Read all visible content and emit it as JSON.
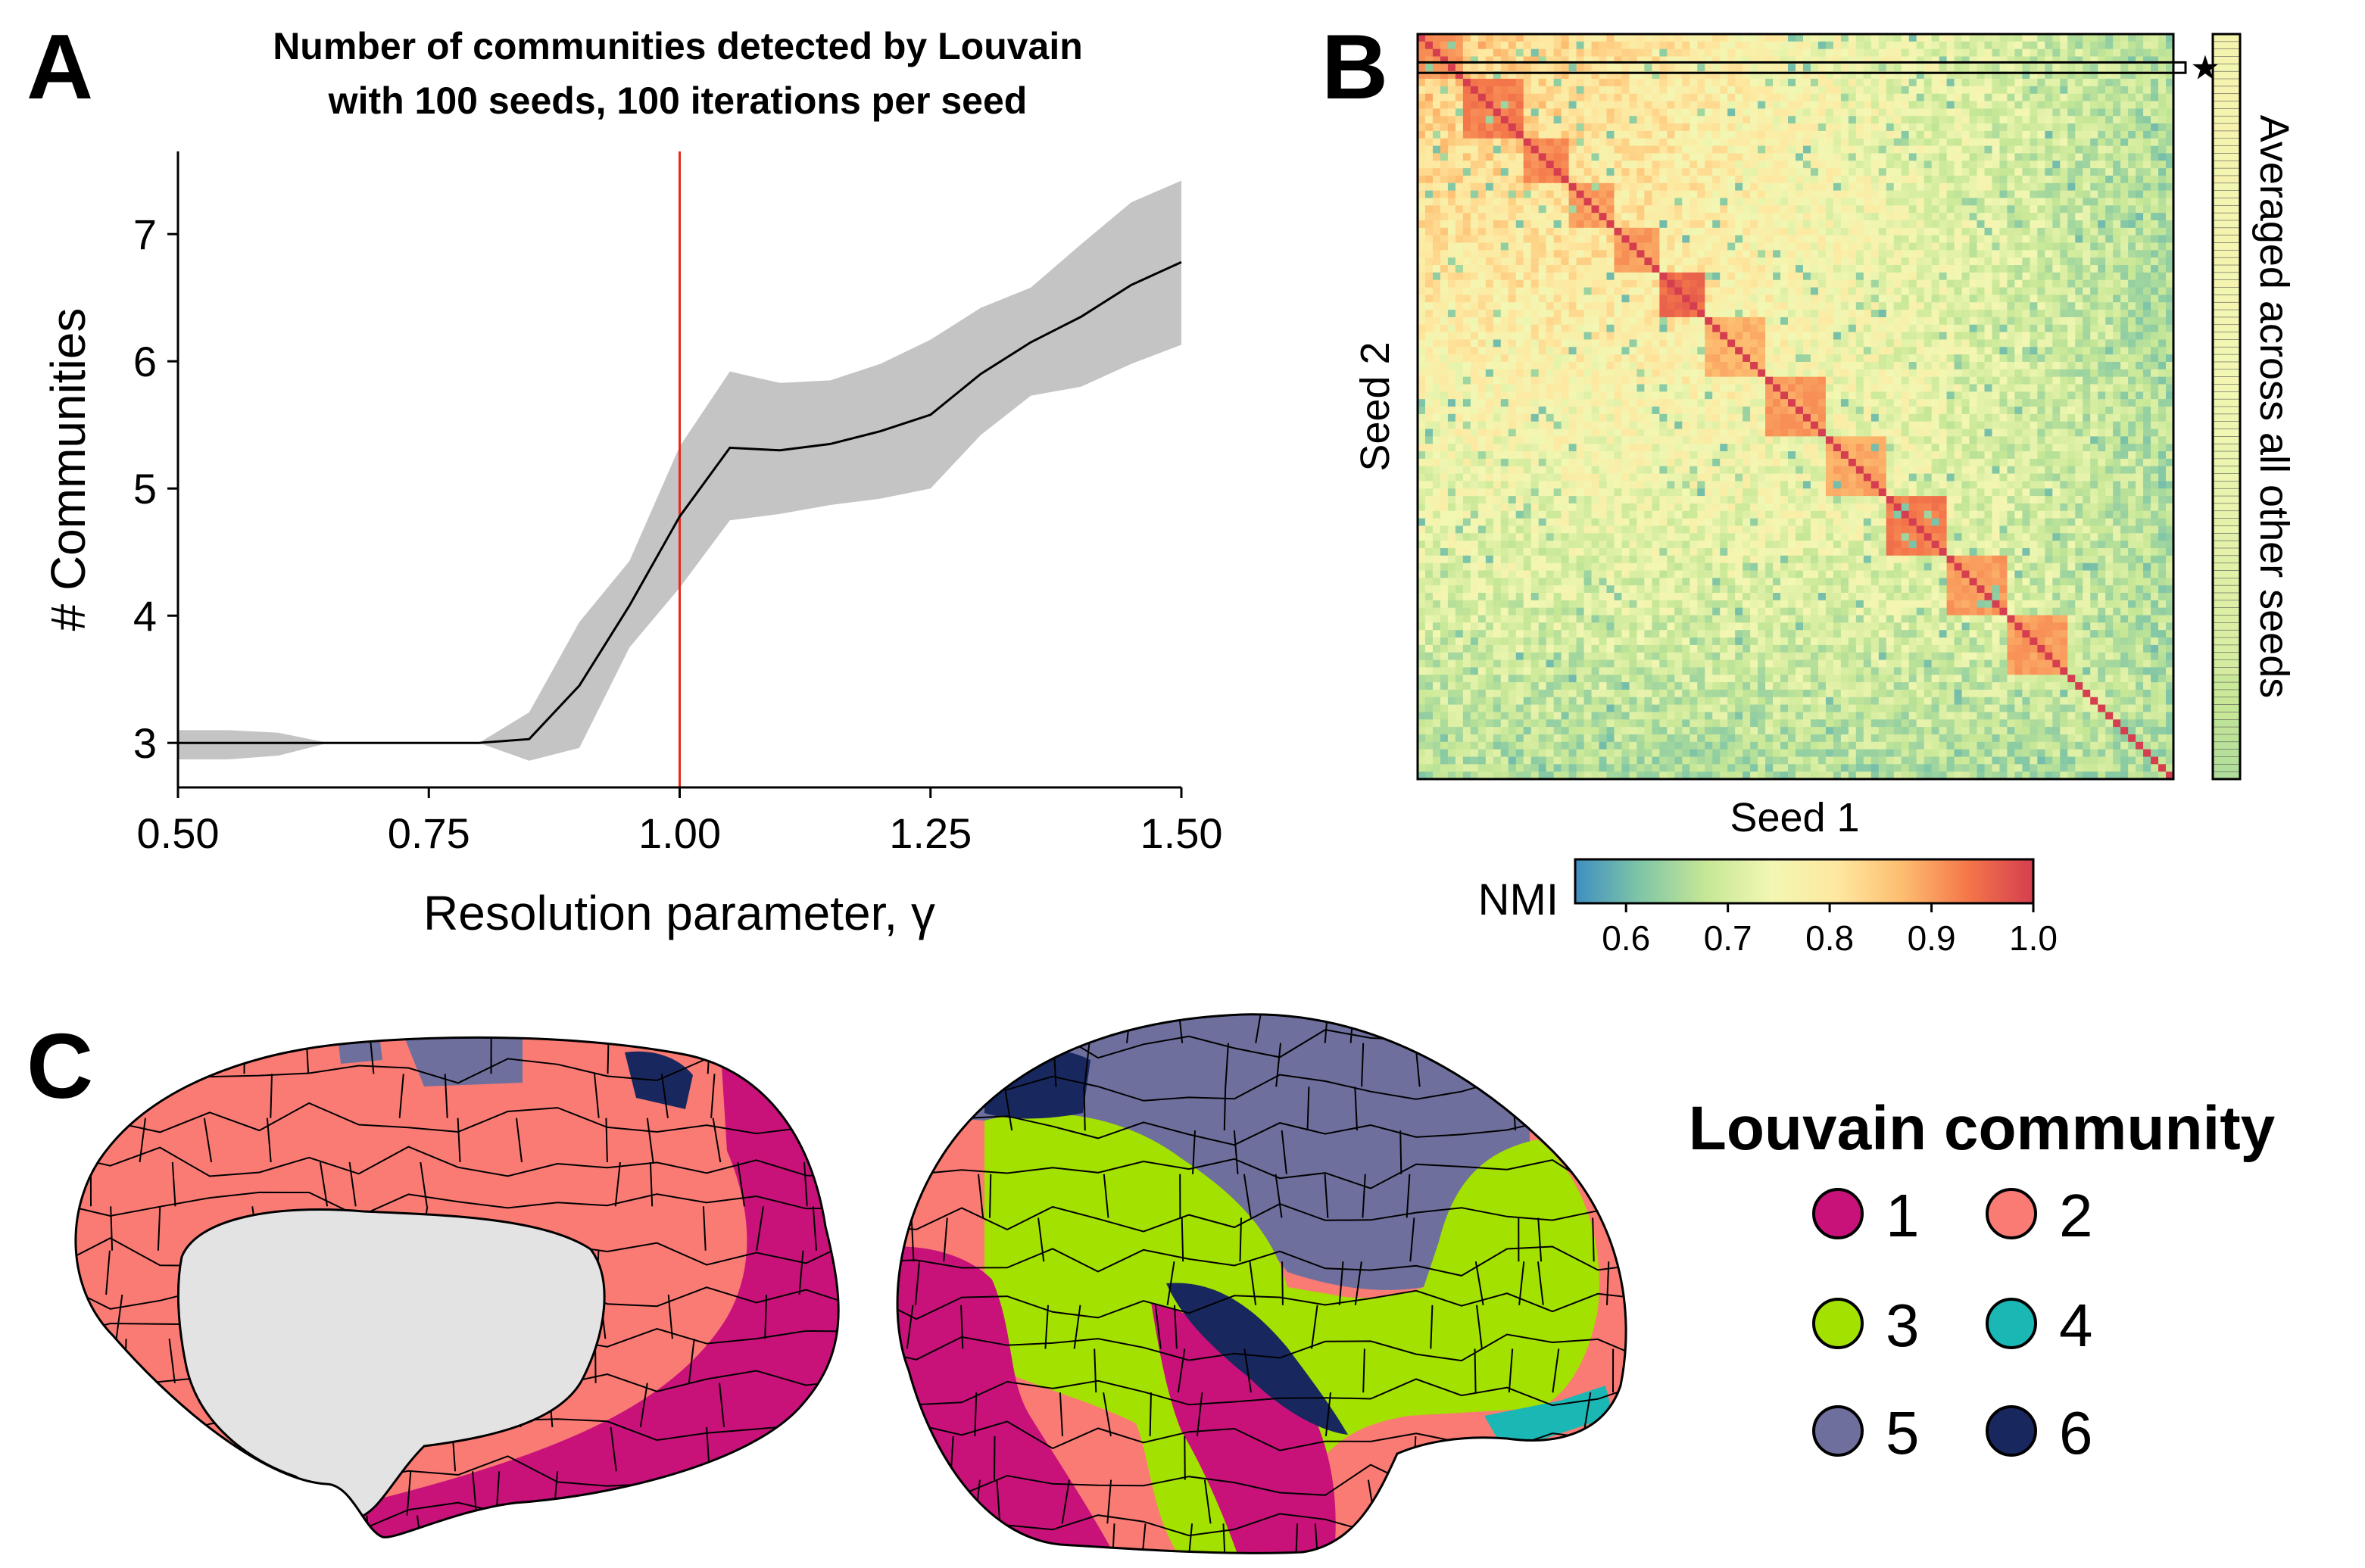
{
  "panels": {
    "a": {
      "letter": "A"
    },
    "b": {
      "letter": "B"
    },
    "c": {
      "letter": "C"
    }
  },
  "colors": {
    "mean_line": "#000000",
    "band": "#c4c4c4",
    "reference_line": "#e8291c",
    "medial_wall": "#e3e3e3",
    "cortex_outline": "#000000"
  },
  "chart_data": [
    {
      "type": "line",
      "title": "Number of communities detected by Louvain with 100 seeds, 100 iterations per seed",
      "title_lines": [
        "Number of communities detected by Louvain",
        "with 100 seeds, 100 iterations per seed"
      ],
      "xlabel": "Resolution parameter, γ",
      "ylabel": "# Communities",
      "xlim": [
        0.5,
        1.5
      ],
      "ylim": [
        2.65,
        7.65
      ],
      "xticks": [
        0.5,
        0.75,
        1.0,
        1.25,
        1.5
      ],
      "xtick_labels": [
        "0.50",
        "0.75",
        "1.00",
        "1.25",
        "1.50"
      ],
      "yticks": [
        3,
        4,
        5,
        6,
        7
      ],
      "ytick_labels": [
        "3",
        "4",
        "5",
        "6",
        "7"
      ],
      "vline": 1.0,
      "grid": false,
      "x": [
        0.5,
        0.55,
        0.6,
        0.65,
        0.7,
        0.75,
        0.8,
        0.85,
        0.9,
        0.95,
        1.0,
        1.05,
        1.1,
        1.15,
        1.2,
        1.25,
        1.3,
        1.35,
        1.4,
        1.45,
        1.5
      ],
      "mean": [
        3.0,
        3.0,
        3.0,
        3.0,
        3.0,
        3.0,
        3.0,
        3.03,
        3.45,
        4.08,
        4.78,
        5.32,
        5.3,
        5.35,
        5.45,
        5.58,
        5.9,
        6.15,
        6.35,
        6.6,
        6.78
      ],
      "upper": [
        3.1,
        3.1,
        3.08,
        3.0,
        3.0,
        3.0,
        3.0,
        3.24,
        3.95,
        4.43,
        5.33,
        5.92,
        5.83,
        5.85,
        5.98,
        6.17,
        6.42,
        6.58,
        6.92,
        7.25,
        7.42
      ],
      "lower": [
        2.87,
        2.87,
        2.9,
        3.0,
        3.0,
        3.0,
        3.0,
        2.86,
        2.96,
        3.75,
        4.22,
        4.75,
        4.8,
        4.87,
        4.92,
        5.0,
        5.42,
        5.73,
        5.8,
        5.98,
        6.13
      ]
    },
    {
      "type": "heatmap",
      "xlabel": "Seed 1",
      "ylabel": "Seed 2",
      "side_label": "Averaged across all other seeds",
      "star_marker": "★",
      "colorbar": {
        "label": "NMI",
        "range": [
          0.55,
          1.0
        ],
        "ticks": [
          0.6,
          0.7,
          0.8,
          0.9,
          1.0
        ],
        "tick_labels": [
          "0.6",
          "0.7",
          "0.8",
          "0.9",
          "1.0"
        ]
      },
      "colormap": [
        "#3e8fc1",
        "#80c6a6",
        "#c6e796",
        "#f2f7b3",
        "#fee8a0",
        "#fdbd6f",
        "#f4774a",
        "#d53e4f"
      ],
      "n": 100,
      "diagonal": 1.0,
      "highlighted_row": 4,
      "cluster_blocks": [
        {
          "start": 0,
          "end": 6,
          "value": 0.91
        },
        {
          "start": 6,
          "end": 14,
          "value": 0.93
        },
        {
          "start": 14,
          "end": 20,
          "value": 0.92
        },
        {
          "start": 20,
          "end": 26,
          "value": 0.9
        },
        {
          "start": 26,
          "end": 32,
          "value": 0.9
        },
        {
          "start": 32,
          "end": 38,
          "value": 0.95
        },
        {
          "start": 38,
          "end": 46,
          "value": 0.88
        },
        {
          "start": 46,
          "end": 54,
          "value": 0.9
        },
        {
          "start": 54,
          "end": 62,
          "value": 0.89
        },
        {
          "start": 62,
          "end": 70,
          "value": 0.93
        },
        {
          "start": 70,
          "end": 78,
          "value": 0.9
        },
        {
          "start": 78,
          "end": 86,
          "value": 0.9
        }
      ],
      "overall_range": [
        0.58,
        1.0
      ]
    }
  ],
  "legend": {
    "title": "Louvain community",
    "items": [
      {
        "label": "1",
        "color": "#c8127a",
        "text_color": "#c8127a"
      },
      {
        "label": "2",
        "color": "#fa7b74",
        "text_color": "#e58b1a"
      },
      {
        "label": "3",
        "color": "#a3e100",
        "text_color": "#96c800"
      },
      {
        "label": "4",
        "color": "#1ab7b4",
        "text_color": "#1ab7b4"
      },
      {
        "label": "5",
        "color": "#6e6f9d",
        "text_color": "#6e6f9d"
      },
      {
        "label": "6",
        "color": "#18285f",
        "text_color": "#18285f"
      }
    ]
  }
}
